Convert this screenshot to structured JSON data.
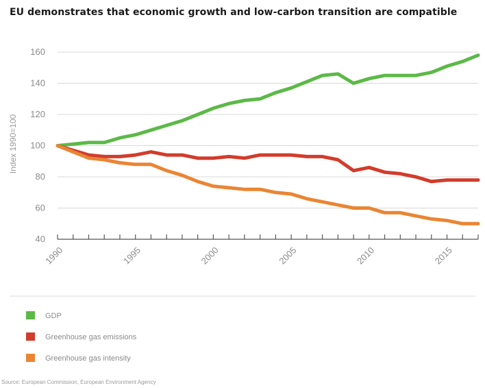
{
  "chart_data": {
    "type": "line",
    "title": "EU demonstrates that economic growth and low-carbon transition are compatible",
    "ylabel": "Index 1990=100",
    "xlabel": "",
    "xlim": [
      1990,
      2017
    ],
    "ylim": [
      40,
      160
    ],
    "yticks": [
      40,
      60,
      80,
      100,
      120,
      140,
      160
    ],
    "xtick_labels": [
      "1990",
      "1995",
      "2000",
      "2005",
      "2010",
      "2015"
    ],
    "grid": "horizontal",
    "legend_position": "bottom",
    "x": [
      1990,
      1991,
      1992,
      1993,
      1994,
      1995,
      1996,
      1997,
      1998,
      1999,
      2000,
      2001,
      2002,
      2003,
      2004,
      2005,
      2006,
      2007,
      2008,
      2009,
      2010,
      2011,
      2012,
      2013,
      2014,
      2015,
      2016,
      2017
    ],
    "series": [
      {
        "name": "GDP",
        "color": "#5cb947",
        "values": [
          100,
          101,
          102,
          102,
          105,
          107,
          110,
          113,
          116,
          120,
          124,
          127,
          129,
          130,
          134,
          137,
          141,
          145,
          146,
          140,
          143,
          145,
          145,
          145,
          147,
          151,
          154,
          158
        ]
      },
      {
        "name": "Greenhouse gas emissions",
        "color": "#d23c2c",
        "values": [
          100,
          97,
          94,
          93,
          93,
          94,
          96,
          94,
          94,
          92,
          92,
          93,
          92,
          94,
          94,
          94,
          93,
          93,
          91,
          84,
          86,
          83,
          82,
          80,
          77,
          78,
          78,
          78
        ]
      },
      {
        "name": "Greenhouse gas intensity",
        "color": "#ea8534",
        "values": [
          100,
          96,
          92,
          91,
          89,
          88,
          88,
          84,
          81,
          77,
          74,
          73,
          72,
          72,
          70,
          69,
          66,
          64,
          62,
          60,
          60,
          57,
          57,
          55,
          53,
          52,
          50,
          50
        ]
      }
    ]
  },
  "source": "Source: European Commission, European Environment Agency"
}
